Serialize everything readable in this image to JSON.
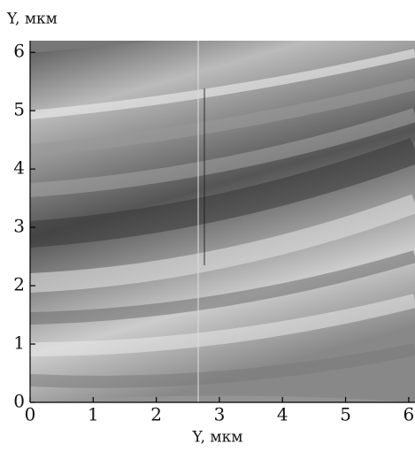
{
  "chart_data": {
    "type": "image",
    "x_label": "Y, мкм",
    "y_label": "Y, мкм",
    "xlim": [
      0,
      6.1
    ],
    "ylim": [
      0,
      6.2
    ],
    "xticks": [
      0,
      1,
      2,
      3,
      4,
      5,
      6
    ],
    "yticks": [
      0,
      1,
      2,
      3,
      4,
      5,
      6
    ]
  }
}
